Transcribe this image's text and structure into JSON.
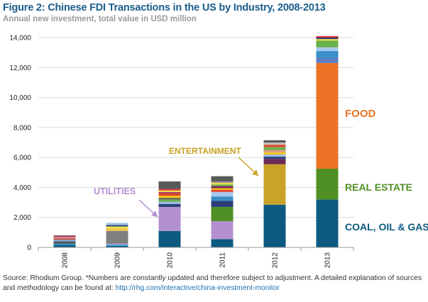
{
  "header": {
    "title": "Figure 2: Chinese FDI Transactions in the US by Industry, 2008-2013",
    "subtitle": "Annual new investment, total value in USD million"
  },
  "footer": {
    "note": "Source: Rhodium Group. *Numbers are constantly updated and therefore subject to adjustment. A detailed explanation of sources and methodology can be found at: ",
    "link": "http://rhg.com/interactive/china-investment-monitor"
  },
  "colors": {
    "coal_oil_gas": "#0d5a80",
    "real_estate": "#4f8f23",
    "food": "#ee7326",
    "entertainment": "#c9a227",
    "utilities": "#b48fd1",
    "grid": "#d9d9d9",
    "axis": "#999999"
  },
  "chart_data": {
    "type": "bar",
    "stacked": true,
    "categories": [
      "2008",
      "2009",
      "2010",
      "2011",
      "2012",
      "2013"
    ],
    "ylim": [
      0,
      14000
    ],
    "yticks": [
      "0",
      "2,000",
      "4,000",
      "6,000",
      "8,000",
      "10,000",
      "12,000",
      "14,000"
    ],
    "xlabel": "",
    "ylabel": "",
    "grid": true,
    "stacks": [
      {
        "year": "2008",
        "segments": [
          {
            "value": 150,
            "color": "#0d5a80"
          },
          {
            "value": 100,
            "color": "#2b8cc4"
          },
          {
            "value": 150,
            "color": "#555555"
          },
          {
            "value": 100,
            "color": "#7fb3e0"
          },
          {
            "value": 100,
            "color": "#c0504d"
          },
          {
            "value": 100,
            "color": "#d98a8a"
          },
          {
            "value": 100,
            "color": "#9e3a5e"
          }
        ]
      },
      {
        "year": "2009",
        "segments": [
          {
            "value": 100,
            "color": "#0d5a80"
          },
          {
            "value": 100,
            "color": "#4aa3d6"
          },
          {
            "value": 50,
            "color": "#b48fd1"
          },
          {
            "value": 850,
            "color": "#7f7f7f"
          },
          {
            "value": 150,
            "color": "#f2c14e"
          },
          {
            "value": 150,
            "color": "#e6e04a"
          },
          {
            "value": 100,
            "color": "#2b3e7a"
          },
          {
            "value": 150,
            "color": "#a9c8ec"
          }
        ]
      },
      {
        "year": "2010",
        "segments": [
          {
            "value": 1100,
            "color": "#0d5a80"
          },
          {
            "value": 1600,
            "color": "#b48fd1"
          },
          {
            "value": 200,
            "color": "#2b3e7a"
          },
          {
            "value": 150,
            "color": "#9bbbe0"
          },
          {
            "value": 150,
            "color": "#6ab04c"
          },
          {
            "value": 100,
            "color": "#555555"
          },
          {
            "value": 150,
            "color": "#f0c419"
          },
          {
            "value": 150,
            "color": "#e0442c"
          },
          {
            "value": 100,
            "color": "#9e3a5e"
          },
          {
            "value": 100,
            "color": "#f2e03a"
          },
          {
            "value": 100,
            "color": "#d9363e"
          },
          {
            "value": 500,
            "color": "#595959"
          }
        ]
      },
      {
        "year": "2011",
        "segments": [
          {
            "value": 550,
            "color": "#0d5a80"
          },
          {
            "value": 1200,
            "color": "#b48fd1"
          },
          {
            "value": 950,
            "color": "#4f8f23"
          },
          {
            "value": 400,
            "color": "#2b3e7a"
          },
          {
            "value": 300,
            "color": "#3a8fc8"
          },
          {
            "value": 300,
            "color": "#a9c8ec"
          },
          {
            "value": 150,
            "color": "#e0442c"
          },
          {
            "value": 100,
            "color": "#f0c419"
          },
          {
            "value": 150,
            "color": "#7a2a56"
          },
          {
            "value": 100,
            "color": "#6ab04c"
          },
          {
            "value": 100,
            "color": "#f2e03a"
          },
          {
            "value": 100,
            "color": "#9c9c9c"
          },
          {
            "value": 350,
            "color": "#595959"
          }
        ]
      },
      {
        "year": "2012",
        "segments": [
          {
            "value": 2850,
            "color": "#0d5a80"
          },
          {
            "value": 2700,
            "color": "#c9a227"
          },
          {
            "value": 350,
            "color": "#6b2a56"
          },
          {
            "value": 150,
            "color": "#2b3e7a"
          },
          {
            "value": 150,
            "color": "#9bbbe0"
          },
          {
            "value": 150,
            "color": "#f0c419"
          },
          {
            "value": 150,
            "color": "#d99b7a"
          },
          {
            "value": 200,
            "color": "#6ab04c"
          },
          {
            "value": 150,
            "color": "#e0442c"
          },
          {
            "value": 150,
            "color": "#bfbfbf"
          },
          {
            "value": 150,
            "color": "#595959"
          }
        ]
      },
      {
        "year": "2013",
        "segments": [
          {
            "value": 3200,
            "color": "#0d5a80"
          },
          {
            "value": 2050,
            "color": "#4f8f23"
          },
          {
            "value": 7050,
            "color": "#ee7326"
          },
          {
            "value": 350,
            "color": "#5b7fc4"
          },
          {
            "value": 450,
            "color": "#3a8fc8"
          },
          {
            "value": 250,
            "color": "#a9c8ec"
          },
          {
            "value": 450,
            "color": "#6ab04c"
          },
          {
            "value": 100,
            "color": "#f2e03a"
          },
          {
            "value": 100,
            "color": "#2b3e7a"
          },
          {
            "value": 100,
            "color": "#d9363e"
          }
        ]
      }
    ],
    "annotations": [
      {
        "label": "UTILITIES",
        "color": "#b48fd1"
      },
      {
        "label": "ENTERTAINMENT",
        "color": "#c9a227"
      },
      {
        "label": "FOOD",
        "color": "#ee7326"
      },
      {
        "label": "REAL ESTATE",
        "color": "#4f8f23"
      },
      {
        "label": "COAL, OIL & GAS",
        "color": "#0d5a80"
      }
    ]
  }
}
